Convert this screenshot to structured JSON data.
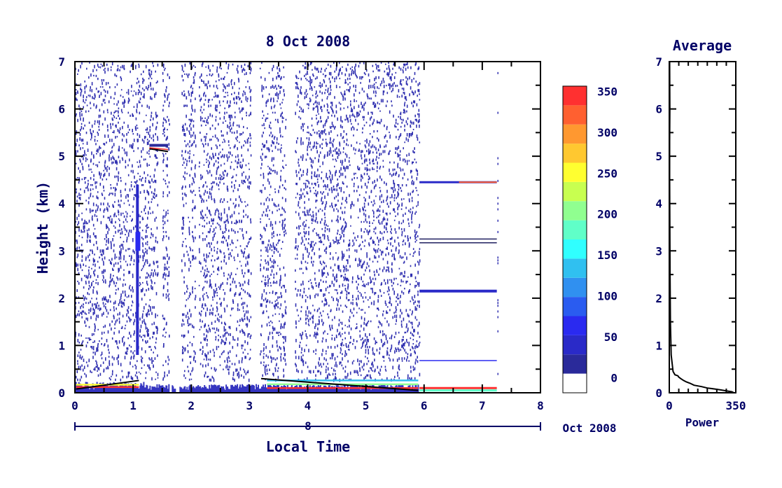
{
  "chart_data": [
    {
      "type": "heatmap",
      "title": "8 Oct 2008",
      "xlabel": "Local Time",
      "ylabel": "Height (km)",
      "xlim": [
        0,
        8
      ],
      "ylim": [
        0,
        7
      ],
      "x_ticks": [
        "0",
        "1",
        "2",
        "3",
        "4",
        "5",
        "6",
        "7",
        "8"
      ],
      "y_ticks": [
        "0",
        "1",
        "2",
        "3",
        "4",
        "5",
        "6",
        "7"
      ],
      "date_axis": {
        "day_label": "8",
        "month_year_label": "Oct 2008"
      },
      "colorbar": {
        "ticks": [
          "0",
          "50",
          "100",
          "150",
          "200",
          "250",
          "300",
          "350"
        ],
        "range": [
          0,
          375
        ],
        "colors": [
          "#ffffff",
          "#2a2a9a",
          "#2a2ac8",
          "#2a2af0",
          "#2a5cf0",
          "#3090f0",
          "#30c0f0",
          "#30ffff",
          "#60ffc8",
          "#90ff90",
          "#c8ff50",
          "#ffff30",
          "#ffc830",
          "#ff9830",
          "#ff6030",
          "#ff3030"
        ]
      },
      "data_gaps_hours": [
        [
          1.42,
          1.48
        ],
        [
          1.62,
          1.8
        ],
        [
          2.05,
          2.12
        ],
        [
          3.0,
          3.15
        ],
        [
          3.6,
          3.75
        ],
        [
          5.92,
          7.25
        ]
      ],
      "features": {
        "near_surface_layer_km": [
          0.0,
          0.3
        ],
        "sparse_echo_km": [
          0.3,
          7.0
        ],
        "persistent_lines_after_6h_km": [
          4.45,
          3.25,
          3.17,
          2.15,
          0.68,
          0.1
        ]
      }
    },
    {
      "type": "line",
      "title": "Average",
      "xlabel": "Power",
      "ylabel": "",
      "xlim": [
        0,
        350
      ],
      "ylim": [
        0,
        7
      ],
      "x_ticks": [
        "0",
        "350"
      ],
      "y_ticks": [
        "0",
        "1",
        "2",
        "3",
        "4",
        "5",
        "6",
        "7"
      ],
      "series": [
        {
          "x": [
            340,
            330,
            300,
            270,
            240,
            200,
            170,
            130,
            110,
            90,
            75,
            60,
            50,
            45,
            30,
            20,
            10,
            6,
            4,
            3,
            2,
            2,
            2,
            3,
            2
          ],
          "y": [
            0.0,
            0.02,
            0.04,
            0.06,
            0.08,
            0.1,
            0.13,
            0.16,
            0.2,
            0.23,
            0.26,
            0.3,
            0.33,
            0.36,
            0.38,
            0.45,
            0.8,
            1.5,
            2.5,
            3.5,
            4.5,
            5.0,
            5.3,
            6.0,
            7.0
          ]
        }
      ]
    }
  ]
}
